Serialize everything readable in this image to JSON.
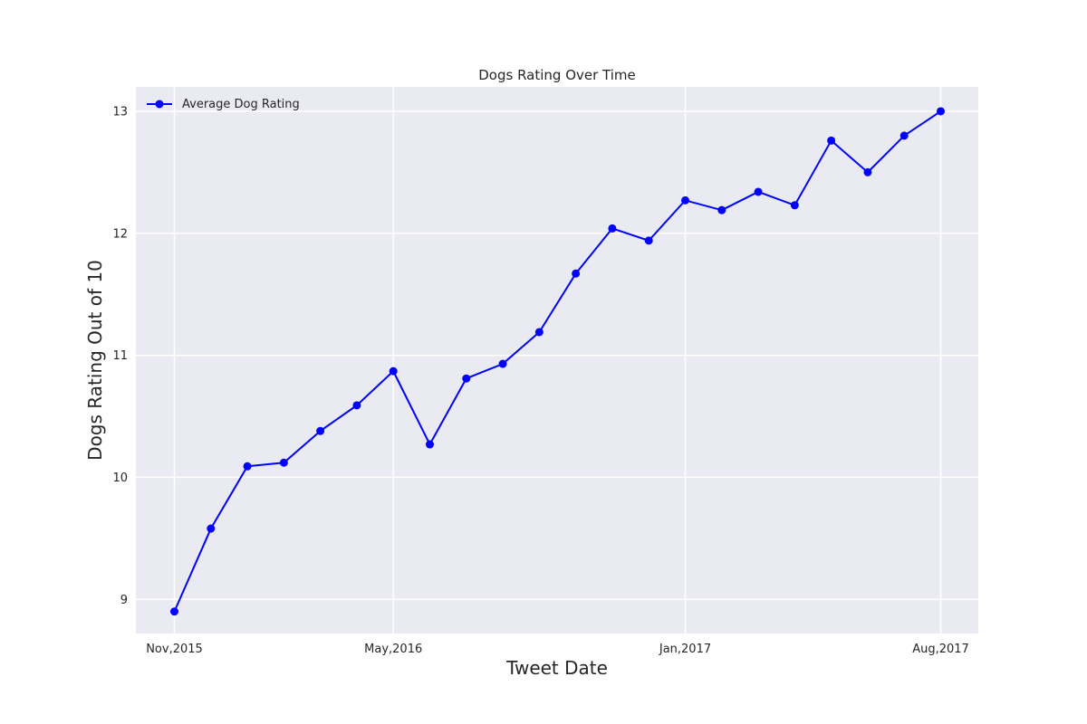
{
  "chart_data": {
    "type": "line",
    "title": "Dogs Rating Over Time",
    "xlabel": "Tweet Date",
    "ylabel": "Dogs Rating Out of 10",
    "x": [
      "2015-11",
      "2015-12",
      "2016-01",
      "2016-02",
      "2016-03",
      "2016-04",
      "2016-05",
      "2016-06",
      "2016-07",
      "2016-08",
      "2016-09",
      "2016-10",
      "2016-11",
      "2016-12",
      "2017-01",
      "2017-02",
      "2017-03",
      "2017-04",
      "2017-05",
      "2017-06",
      "2017-07",
      "2017-08"
    ],
    "x_ticks": [
      {
        "date": "2015-11",
        "label": "Nov,2015"
      },
      {
        "date": "2016-05",
        "label": "May,2016"
      },
      {
        "date": "2017-01",
        "label": "Jan,2017"
      },
      {
        "date": "2017-08",
        "label": "Aug,2017"
      }
    ],
    "series": [
      {
        "name": "Average Dog Rating",
        "color": "#0000ff",
        "marker": "circle",
        "values": [
          8.9,
          9.58,
          10.09,
          10.12,
          10.38,
          10.59,
          10.87,
          10.27,
          10.81,
          10.93,
          11.19,
          11.67,
          12.04,
          11.94,
          12.27,
          12.19,
          12.34,
          12.23,
          12.76,
          12.5,
          12.8,
          13.0
        ]
      }
    ],
    "y_ticks": [
      9,
      10,
      11,
      12,
      13
    ],
    "ylim": [
      8.72,
      13.2
    ],
    "grid": true,
    "legend": "top-left",
    "background": "#eaeaf2"
  }
}
